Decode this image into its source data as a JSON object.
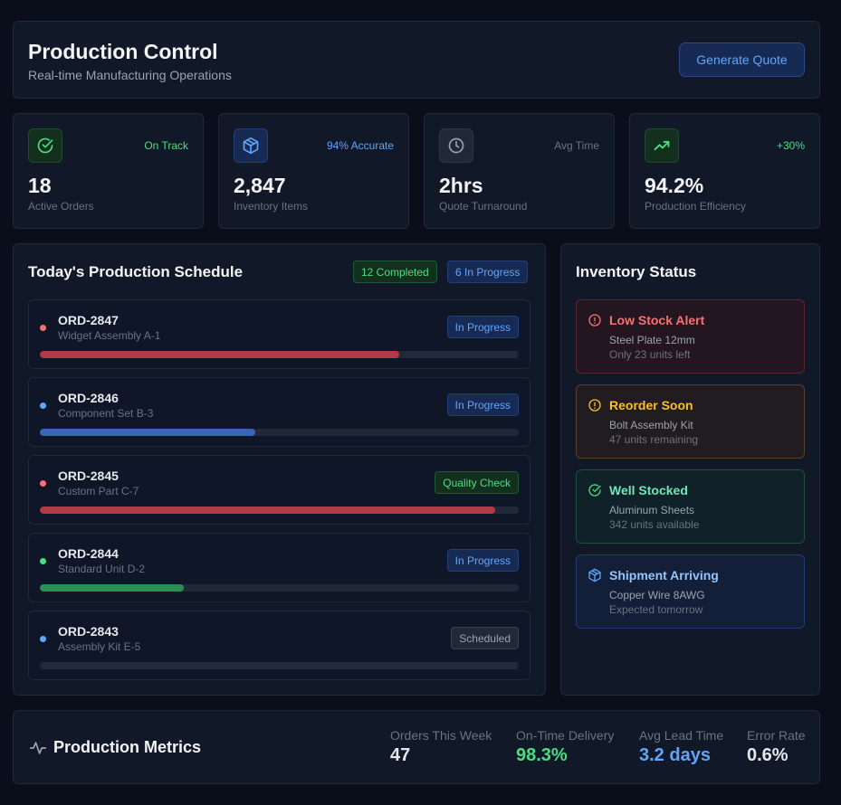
{
  "header": {
    "title": "Production Control",
    "subtitle": "Real-time Manufacturing Operations",
    "generate_quote_label": "Generate Quote"
  },
  "stats": [
    {
      "icon": "check-circle-icon",
      "tag": "On Track",
      "value": "18",
      "label": "Active Orders",
      "color": "#4ade80"
    },
    {
      "icon": "package-icon",
      "tag": "94% Accurate",
      "value": "2,847",
      "label": "Inventory Items",
      "color": "#60a5fa"
    },
    {
      "icon": "clock-icon",
      "tag": "Avg Time",
      "value": "2hrs",
      "label": "Quote Turnaround",
      "color": "#9ca3af"
    },
    {
      "icon": "trending-up-icon",
      "tag": "+30%",
      "value": "94.2%",
      "label": "Production Efficiency",
      "color": "#4ade80"
    }
  ],
  "schedule": {
    "title": "Today's Production Schedule",
    "completed_badge": "12 Completed",
    "in_progress_badge": "6 In Progress",
    "orders": [
      {
        "id": "ORD-2847",
        "name": "Widget Assembly A-1",
        "status": "In Progress",
        "status_type": "blue",
        "dot_color": "#f87171",
        "bar_color": "#b23a48",
        "progress": 0.75
      },
      {
        "id": "ORD-2846",
        "name": "Component Set B-3",
        "status": "In Progress",
        "status_type": "blue",
        "dot_color": "#60a5fa",
        "bar_color": "#3b63b8",
        "progress": 0.45
      },
      {
        "id": "ORD-2845",
        "name": "Custom Part C-7",
        "status": "Quality Check",
        "status_type": "green",
        "dot_color": "#f87171",
        "bar_color": "#b23a48",
        "progress": 0.95
      },
      {
        "id": "ORD-2844",
        "name": "Standard Unit D-2",
        "status": "In Progress",
        "status_type": "blue",
        "dot_color": "#4ade80",
        "bar_color": "#2a8f55",
        "progress": 0.3
      },
      {
        "id": "ORD-2843",
        "name": "Assembly Kit E-5",
        "status": "Scheduled",
        "status_type": "gray",
        "dot_color": "#60a5fa",
        "bar_color": "#2a8f55",
        "progress": 0.0
      }
    ]
  },
  "inventory": {
    "title": "Inventory Status",
    "items": [
      {
        "icon": "alert-circle-icon",
        "title": "Low Stock Alert",
        "line1": "Steel Plate 12mm",
        "line2": "Only 23 units left",
        "type": "red"
      },
      {
        "icon": "alert-circle-icon",
        "title": "Reorder Soon",
        "line1": "Bolt Assembly Kit",
        "line2": "47 units remaining",
        "type": "amber"
      },
      {
        "icon": "check-circle-icon",
        "title": "Well Stocked",
        "line1": "Aluminum Sheets",
        "line2": "342 units available",
        "type": "green"
      },
      {
        "icon": "package-icon",
        "title": "Shipment Arriving",
        "line1": "Copper Wire 8AWG",
        "line2": "Expected tomorrow",
        "type": "blue"
      }
    ]
  },
  "metrics": {
    "title": "Production Metrics",
    "items": [
      {
        "label": "Orders This Week",
        "value": "47",
        "color": "#e5e7eb"
      },
      {
        "label": "On-Time Delivery",
        "value": "98.3%",
        "color": "#4ade80"
      },
      {
        "label": "Avg Lead Time",
        "value": "3.2 days",
        "color": "#60a5fa"
      },
      {
        "label": "Error Rate",
        "value": "0.6%",
        "color": "#e5e7eb"
      }
    ]
  }
}
